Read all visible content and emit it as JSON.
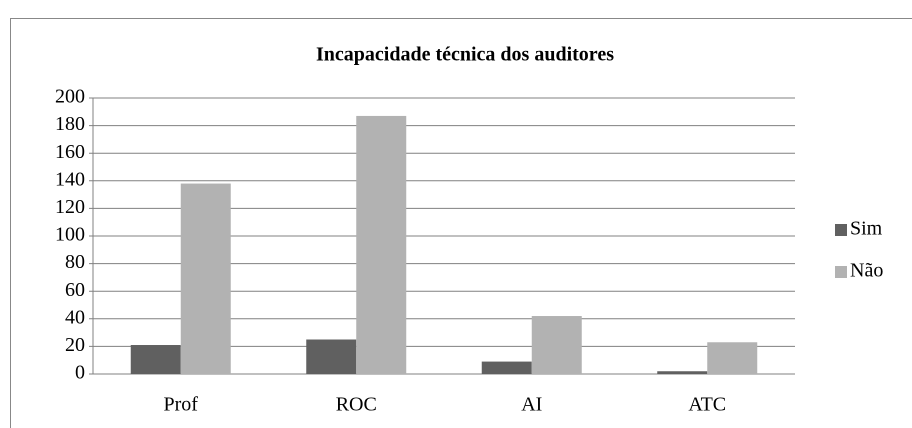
{
  "chart_data": {
    "type": "bar",
    "title": "Incapacidade técnica dos auditores",
    "categories": [
      "Prof",
      "ROC",
      "AI",
      "ATC"
    ],
    "series": [
      {
        "name": "Sim",
        "color": "#606060",
        "values": [
          21,
          25,
          9,
          2
        ]
      },
      {
        "name": "Não",
        "color": "#b2b2b2",
        "values": [
          138,
          187,
          42,
          23
        ]
      }
    ],
    "ylim": [
      0,
      200
    ],
    "yticks": [
      0,
      20,
      40,
      60,
      80,
      100,
      120,
      140,
      160,
      180,
      200
    ],
    "grid": true,
    "legend": "right"
  }
}
